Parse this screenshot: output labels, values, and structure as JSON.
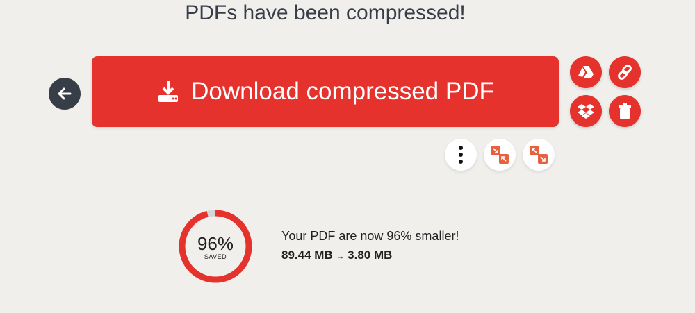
{
  "header": {
    "title": "PDFs have been compressed!"
  },
  "actions": {
    "download_label": "Download compressed PDF",
    "back_icon": "arrow-left-icon",
    "side_icons": [
      "google-drive-icon",
      "link-icon",
      "dropbox-icon",
      "trash-icon"
    ],
    "tool_icons": [
      "more-vertical-icon",
      "compress-icon",
      "expand-icon"
    ]
  },
  "result": {
    "percent_saved": 96,
    "percent_label": "96%",
    "saved_label": "SAVED",
    "message": "Your PDF are now 96% smaller!",
    "original_size": "89.44 MB",
    "arrow": "→",
    "new_size": "3.80 MB"
  },
  "colors": {
    "accent": "#e5322d",
    "dark": "#383e48",
    "background": "#f0efec",
    "tool_orange": "#e8613f"
  }
}
